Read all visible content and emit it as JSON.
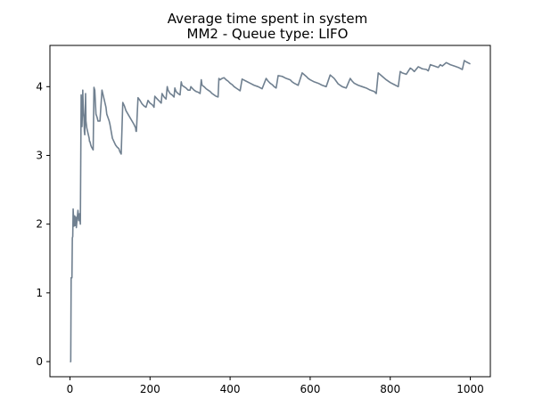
{
  "chart_data": {
    "type": "line",
    "title_lines": [
      "Average time spent in system",
      "MM2 - Queue type: LIFO"
    ],
    "xlabel": "",
    "ylabel": "",
    "xlim": [
      -50,
      1050
    ],
    "ylim": [
      -0.22,
      4.6
    ],
    "xticks": [
      0,
      200,
      400,
      600,
      800,
      1000
    ],
    "yticks": [
      0,
      1,
      2,
      3,
      4
    ],
    "grid": false,
    "line_color": "#708090",
    "series": [
      {
        "x": [
          0,
          2,
          3,
          5,
          6,
          7,
          8,
          9,
          10,
          11,
          12,
          13,
          14,
          15,
          16,
          18,
          20,
          22,
          24,
          26,
          28,
          30,
          31,
          32,
          33,
          34,
          35,
          36,
          37,
          38,
          39,
          40,
          42,
          44,
          46,
          48,
          49,
          50,
          52,
          54,
          56,
          58,
          60,
          62,
          65,
          68,
          70,
          75,
          80,
          82,
          84,
          86,
          88,
          90,
          92,
          95,
          98,
          100,
          103,
          106,
          110,
          114,
          118,
          122,
          125,
          128,
          132,
          136,
          140,
          145,
          150,
          155,
          160,
          164,
          165,
          166,
          170,
          175,
          180,
          185,
          190,
          195,
          200,
          205,
          208,
          210,
          212,
          218,
          225,
          228,
          230,
          235,
          240,
          243,
          245,
          250,
          255,
          260,
          262,
          265,
          270,
          275,
          278,
          280,
          285,
          290,
          295,
          300,
          302,
          305,
          310,
          315,
          320,
          325,
          328,
          330,
          335,
          340,
          345,
          350,
          355,
          360,
          365,
          370,
          372,
          375,
          380,
          385,
          390,
          395,
          400,
          405,
          410,
          415,
          420,
          425,
          430,
          440,
          450,
          460,
          470,
          480,
          490,
          495,
          500,
          505,
          510,
          515,
          520,
          530,
          540,
          550,
          555,
          560,
          570,
          580,
          590,
          595,
          600,
          610,
          620,
          630,
          640,
          650,
          660,
          665,
          670,
          680,
          690,
          700,
          705,
          710,
          720,
          730,
          740,
          750,
          760,
          765,
          770,
          780,
          790,
          800,
          810,
          820,
          825,
          830,
          840,
          850,
          855,
          860,
          870,
          880,
          890,
          895,
          900,
          910,
          920,
          925,
          930,
          940,
          950,
          960,
          970,
          980,
          985,
          990,
          1000
        ],
        "y": [
          0.0,
          0.0,
          1.22,
          1.22,
          1.8,
          1.82,
          2.22,
          2.1,
          1.97,
          2.05,
          2.12,
          1.98,
          2.05,
          2.1,
          1.95,
          2.08,
          2.2,
          2.05,
          2.15,
          2.0,
          3.88,
          3.42,
          3.6,
          3.95,
          3.75,
          3.62,
          3.55,
          3.35,
          3.3,
          3.55,
          3.9,
          3.5,
          3.4,
          3.35,
          3.3,
          3.25,
          3.2,
          3.2,
          3.15,
          3.12,
          3.1,
          3.08,
          3.99,
          3.95,
          3.6,
          3.55,
          3.5,
          3.5,
          3.95,
          3.9,
          3.85,
          3.8,
          3.75,
          3.7,
          3.6,
          3.55,
          3.5,
          3.45,
          3.35,
          3.25,
          3.2,
          3.15,
          3.12,
          3.1,
          3.05,
          3.02,
          3.77,
          3.72,
          3.65,
          3.6,
          3.55,
          3.5,
          3.45,
          3.4,
          3.35,
          3.35,
          3.84,
          3.8,
          3.75,
          3.72,
          3.7,
          3.8,
          3.76,
          3.74,
          3.72,
          3.7,
          3.86,
          3.82,
          3.78,
          3.76,
          3.9,
          3.85,
          3.82,
          4.0,
          3.95,
          3.9,
          3.88,
          3.85,
          3.98,
          3.93,
          3.9,
          3.88,
          4.07,
          4.02,
          4.0,
          3.98,
          3.95,
          3.95,
          4.0,
          3.98,
          3.95,
          3.93,
          3.92,
          3.9,
          4.1,
          4.02,
          4.0,
          3.97,
          3.95,
          3.93,
          3.9,
          3.88,
          3.86,
          3.85,
          4.12,
          4.1,
          4.12,
          4.13,
          4.1,
          4.08,
          4.05,
          4.03,
          4.0,
          3.98,
          3.96,
          3.94,
          4.11,
          4.08,
          4.05,
          4.02,
          4.0,
          3.97,
          4.12,
          4.08,
          4.05,
          4.03,
          4.0,
          3.98,
          4.16,
          4.15,
          4.12,
          4.1,
          4.07,
          4.05,
          4.02,
          4.2,
          4.15,
          4.12,
          4.1,
          4.07,
          4.05,
          4.02,
          4.0,
          4.17,
          4.12,
          4.08,
          4.04,
          4.0,
          3.98,
          4.12,
          4.08,
          4.05,
          4.02,
          4.0,
          3.98,
          3.95,
          3.93,
          3.9,
          4.2,
          4.15,
          4.1,
          4.06,
          4.03,
          4.0,
          4.22,
          4.2,
          4.18,
          4.27,
          4.25,
          4.22,
          4.29,
          4.26,
          4.25,
          4.23,
          4.32,
          4.3,
          4.28,
          4.32,
          4.3,
          4.35,
          4.32,
          4.3,
          4.28,
          4.25,
          4.38,
          4.36,
          4.33
        ]
      }
    ]
  }
}
